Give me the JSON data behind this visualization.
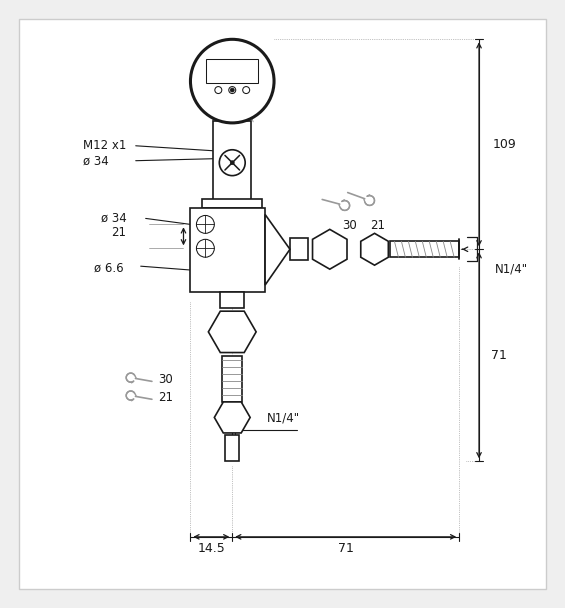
{
  "bg_color": "#efefef",
  "line_color": "#1a1a1a",
  "fig_width": 5.65,
  "fig_height": 6.08,
  "dpi": 100,
  "labels": {
    "M12x1": "M12 x1",
    "phi34_top": "ø 34",
    "phi34_mid": "ø 34",
    "phi66": "ø 6.6",
    "dim21": "21",
    "dim109": "109",
    "dim71_v": "71",
    "dim71_h": "71",
    "dim145": "14.5",
    "dim30_r": "30",
    "dim21_r": "21",
    "dim30_b": "30",
    "dim21_b": "21",
    "N14_r": "N1/4\"",
    "N14_b": "N1/4\""
  }
}
